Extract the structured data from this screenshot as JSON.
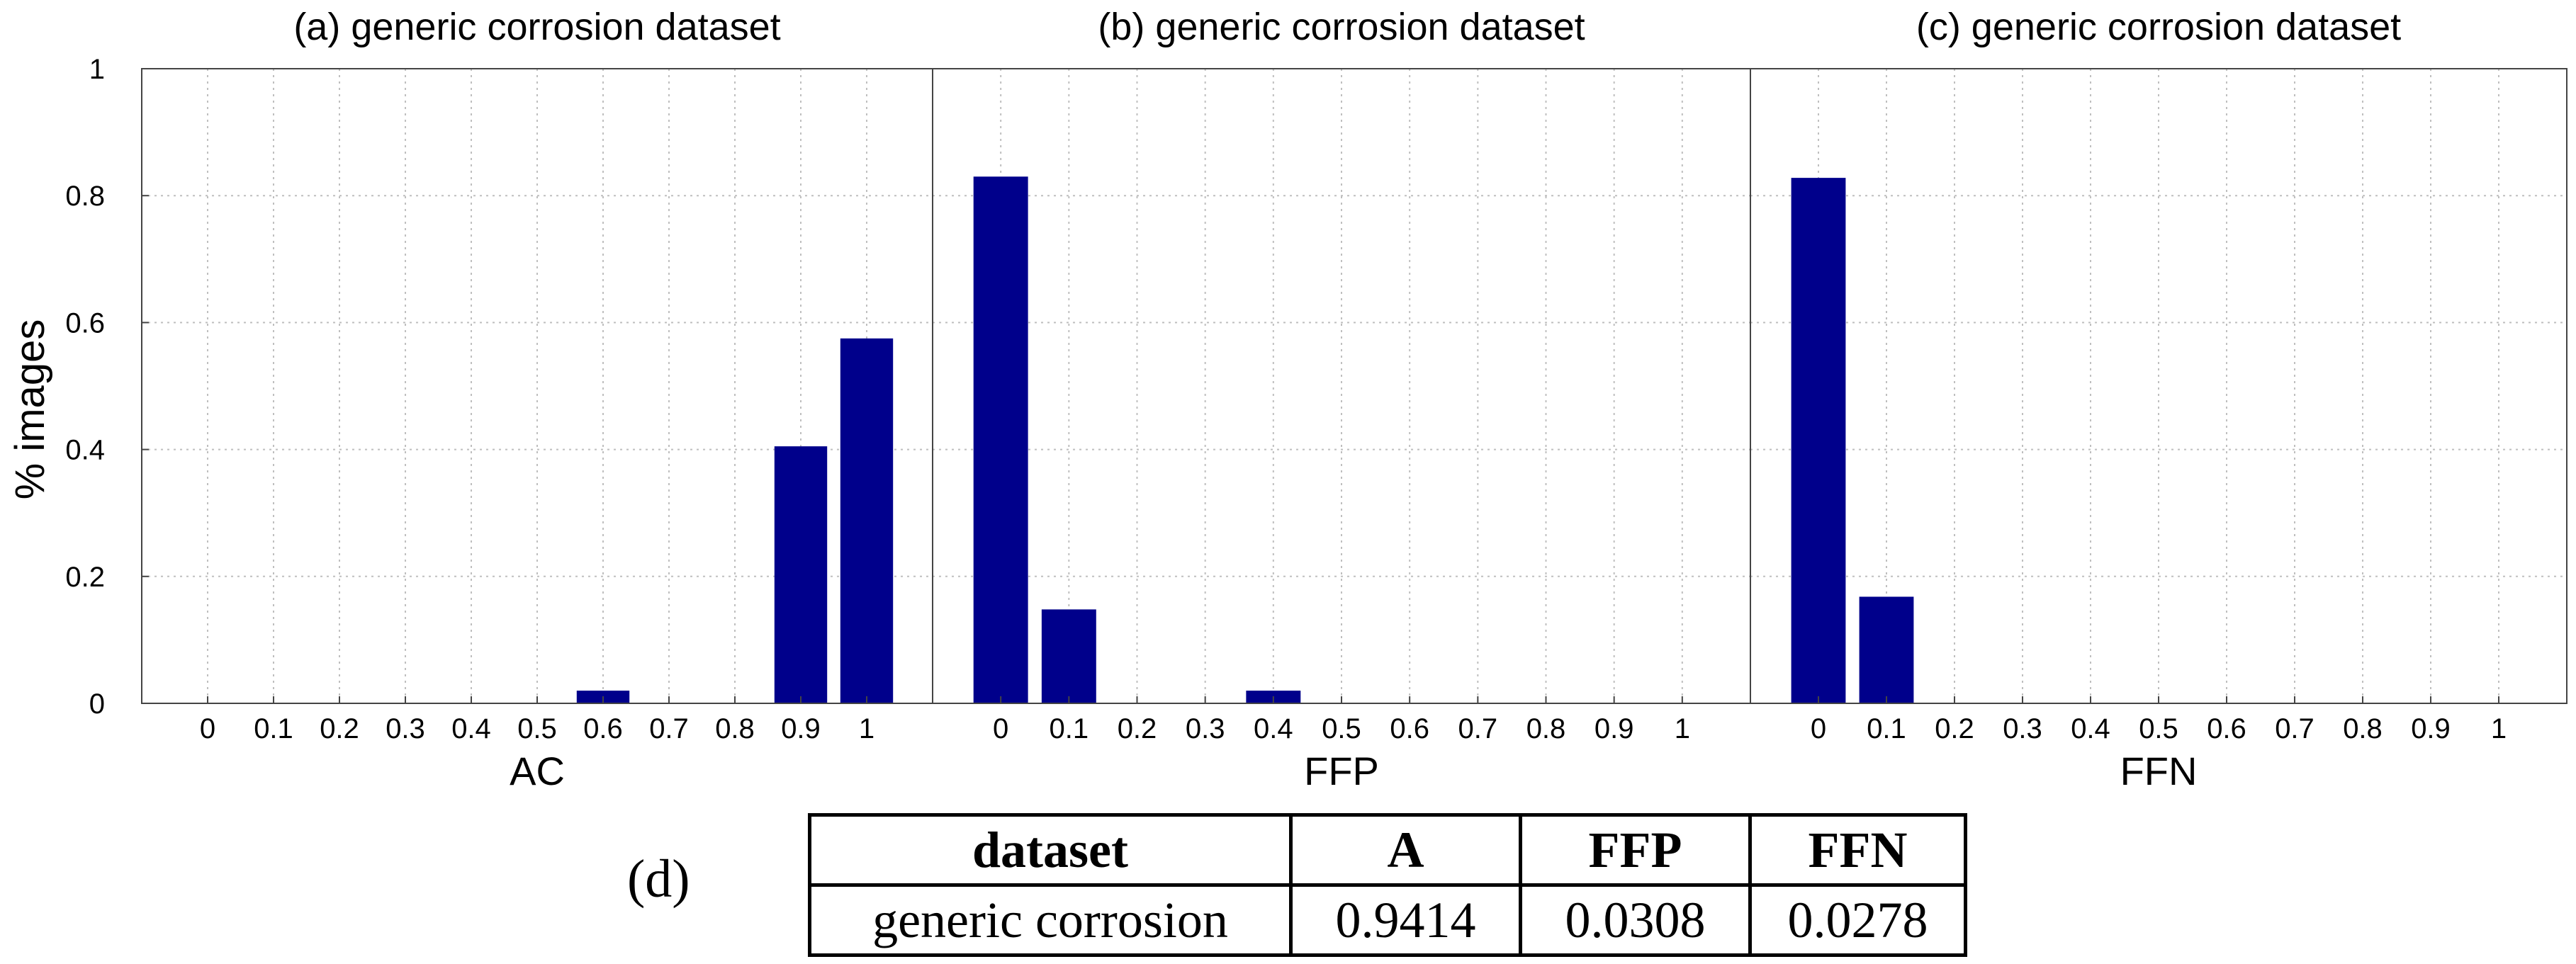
{
  "colors": {
    "bar": "#00008b",
    "grid": "#bfbfbf",
    "axis": "#444444",
    "text": "#000000"
  },
  "ylabel": "% images",
  "chart_data": [
    {
      "type": "bar",
      "title": "(a) generic corrosion dataset",
      "xlabel": "AC",
      "ylabel": "% images",
      "categories": [
        "0",
        "0.1",
        "0.2",
        "0.3",
        "0.4",
        "0.5",
        "0.6",
        "0.7",
        "0.8",
        "0.9",
        "1"
      ],
      "values": [
        0,
        0,
        0,
        0,
        0,
        0,
        0.02,
        0,
        0,
        0.405,
        0.575
      ],
      "ylim": [
        0,
        1
      ],
      "yticks": [
        "0",
        "0.2",
        "0.4",
        "0.6",
        "0.8",
        "1"
      ],
      "grid": true
    },
    {
      "type": "bar",
      "title": "(b) generic corrosion dataset",
      "xlabel": "FFP",
      "ylabel": "",
      "categories": [
        "0",
        "0.1",
        "0.2",
        "0.3",
        "0.4",
        "0.5",
        "0.6",
        "0.7",
        "0.8",
        "0.9",
        "1"
      ],
      "values": [
        0.83,
        0.148,
        0,
        0,
        0.02,
        0,
        0,
        0,
        0,
        0,
        0
      ],
      "ylim": [
        0,
        1
      ],
      "yticks": [],
      "grid": true
    },
    {
      "type": "bar",
      "title": "(c) generic corrosion dataset",
      "xlabel": "FFN",
      "ylabel": "",
      "categories": [
        "0",
        "0.1",
        "0.2",
        "0.3",
        "0.4",
        "0.5",
        "0.6",
        "0.7",
        "0.8",
        "0.9",
        "1"
      ],
      "values": [
        0.828,
        0.168,
        0,
        0,
        0,
        0,
        0,
        0,
        0,
        0,
        0
      ],
      "ylim": [
        0,
        1
      ],
      "yticks": [],
      "grid": true
    }
  ],
  "table": {
    "label": "(d)",
    "headers": [
      "dataset",
      "A",
      "FFP",
      "FFN"
    ],
    "row": [
      "generic corrosion",
      "0.9414",
      "0.0308",
      "0.0278"
    ]
  }
}
